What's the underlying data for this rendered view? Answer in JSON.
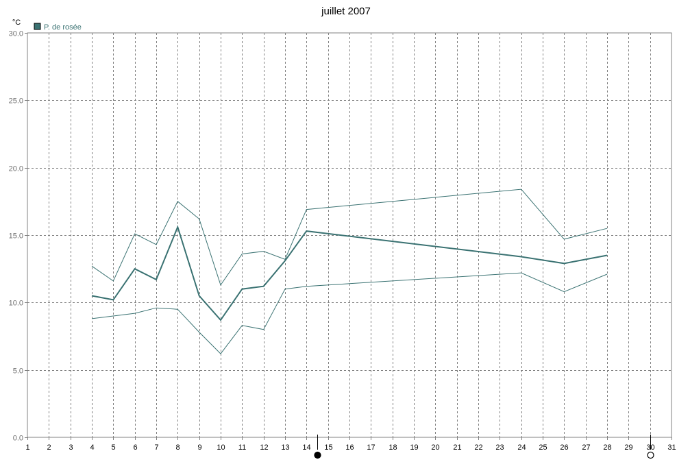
{
  "chart_data": {
    "type": "line",
    "title": "juillet 2007",
    "ylabel": "°C",
    "xlabel": "",
    "ylim": [
      0,
      30
    ],
    "xlim": [
      1,
      31
    ],
    "grid": true,
    "legend_position": "top-left",
    "x_ticks": [
      1,
      2,
      3,
      4,
      5,
      6,
      7,
      8,
      9,
      10,
      11,
      12,
      13,
      14,
      15,
      16,
      17,
      18,
      19,
      20,
      21,
      22,
      23,
      24,
      25,
      26,
      27,
      28,
      29,
      30,
      31
    ],
    "x_tick_labels": [
      "1",
      "2",
      "3",
      "4",
      "5",
      "6",
      "7",
      "8",
      "9",
      "10",
      "11",
      "12",
      "13",
      "14",
      "15",
      "16",
      "17",
      "18",
      "19",
      "20",
      "21",
      "22",
      "23",
      "24",
      "25",
      "26",
      "27",
      "28",
      "29",
      "30",
      "31"
    ],
    "y_ticks": [
      0,
      5,
      10,
      15,
      20,
      25,
      30
    ],
    "y_tick_labels": [
      "0.0",
      "5.0",
      "10.0",
      "15.0",
      "20.0",
      "25.0",
      "30.0"
    ],
    "legend": [
      {
        "label": "P. de rosée",
        "color": "#3a7272"
      }
    ],
    "series": [
      {
        "name": "P. de rosée",
        "role": "mean",
        "color": "#3a7272",
        "x": [
          4,
          5,
          6,
          7,
          8,
          9,
          10,
          11,
          12,
          13,
          14,
          24,
          26,
          28
        ],
        "values": [
          10.5,
          10.2,
          12.5,
          11.7,
          15.6,
          10.5,
          8.7,
          11.0,
          11.2,
          13.1,
          15.3,
          13.4,
          12.9,
          13.5
        ]
      },
      {
        "role": "max",
        "color": "#3a7272",
        "x": [
          4,
          5,
          6,
          7,
          8,
          9,
          10,
          11,
          12,
          13,
          14,
          24,
          26,
          28
        ],
        "values": [
          12.7,
          11.6,
          15.1,
          14.3,
          17.5,
          16.2,
          11.3,
          13.6,
          13.8,
          13.2,
          16.9,
          18.4,
          14.7,
          15.5
        ]
      },
      {
        "role": "min",
        "color": "#3a7272",
        "x": [
          4,
          5,
          6,
          7,
          8,
          9,
          10,
          11,
          12,
          13,
          14,
          24,
          26,
          28
        ],
        "values": [
          8.8,
          9.0,
          9.2,
          9.6,
          9.5,
          7.8,
          6.2,
          8.3,
          8.0,
          11.0,
          11.2,
          12.2,
          10.8,
          12.1
        ]
      }
    ],
    "markers": [
      {
        "symbol": "full-moon",
        "x": 14.5
      },
      {
        "symbol": "new-moon",
        "x": 30
      }
    ]
  }
}
